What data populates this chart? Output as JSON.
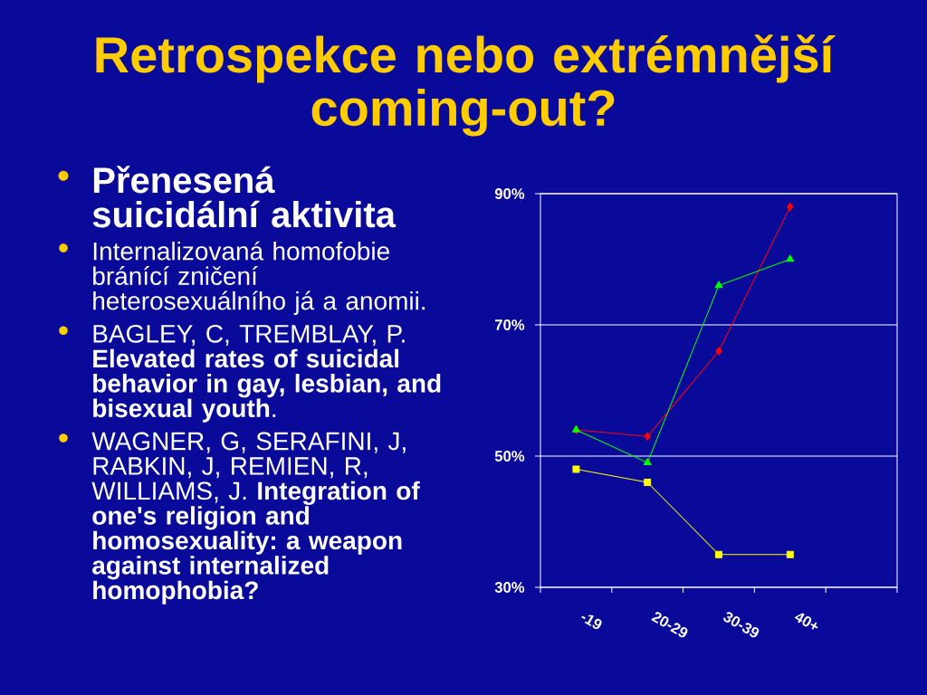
{
  "chart_data": {
    "type": "line",
    "title": "Retrospekce nebo extrémnější coming-out?",
    "subtitle": "Přenesená suicidální aktivita",
    "annotations": [
      "Internalizovaná homofobie bránící zničení heterosexuálního já a anomii.",
      "BAGLEY, C, TREMBLAY, P. **Elevated rates of suicidal behavior in gay, lesbian, and bisexual youth**.",
      "WAGNER, G, SERAFINI, J, RABKIN, J, REMIEN, R, WILLIAMS, J. **Integration of one's religion and homosexuality: a weapon against internalized homophobia?**"
    ],
    "categories": [
      "-19",
      "20-29",
      "30-39",
      "40+",
      null
    ],
    "series": [
      {
        "color": "#ff0000",
        "marker": "diamond",
        "values": [
          54,
          53,
          66,
          88,
          null
        ]
      },
      {
        "color": "#00ff00",
        "marker": "triangle",
        "values": [
          54,
          49,
          76,
          80,
          null
        ]
      },
      {
        "color": "#ffff00",
        "marker": "square",
        "values": [
          48,
          46,
          35,
          35,
          null
        ]
      }
    ],
    "ylim": [
      30,
      90
    ],
    "yticks": [
      {
        "value": 30,
        "label": "30%"
      },
      {
        "value": 50,
        "label": "50%"
      },
      {
        "value": 70,
        "label": "70%"
      },
      {
        "value": 90,
        "label": "90%"
      }
    ],
    "grid": "y"
  }
}
